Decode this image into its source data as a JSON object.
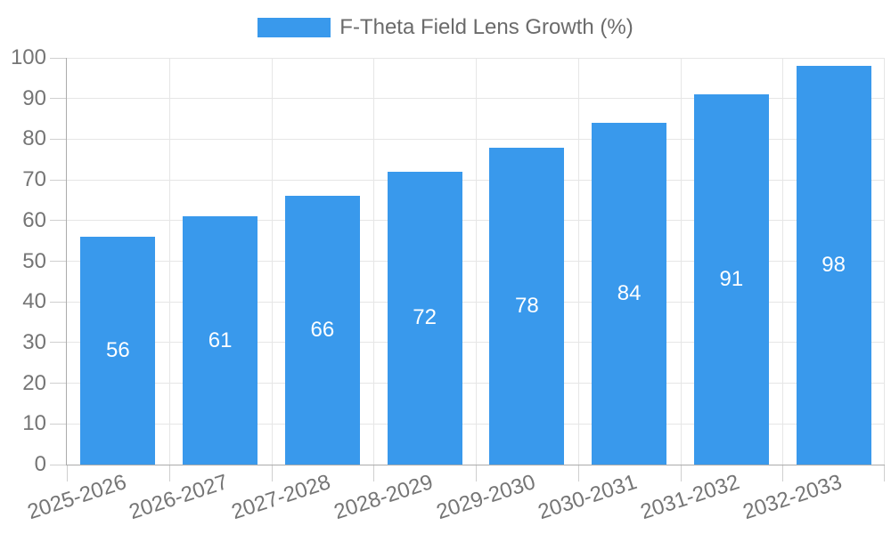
{
  "legend": {
    "label": "F-Theta Field Lens Growth (%)"
  },
  "chart_data": {
    "type": "bar",
    "title": "F-Theta Field Lens Growth (%)",
    "categories": [
      "2025-2026",
      "2026-2027",
      "2027-2028",
      "2028-2029",
      "2029-2030",
      "2030-2031",
      "2031-2032",
      "2032-2033"
    ],
    "values": [
      56,
      61,
      66,
      72,
      78,
      84,
      91,
      98
    ],
    "series": [
      {
        "name": "F-Theta Field Lens Growth (%)",
        "values": [
          56,
          61,
          66,
          72,
          78,
          84,
          91,
          98
        ]
      }
    ],
    "xlabel": "",
    "ylabel": "",
    "ylim": [
      0,
      100
    ],
    "y_tick_step": 10,
    "y_ticks": [
      0,
      10,
      20,
      30,
      40,
      50,
      60,
      70,
      80,
      90,
      100
    ],
    "grid": true,
    "legend_position": "top",
    "bar_value_labels": "inside-center",
    "x_tick_rotation_deg": -18,
    "colors": {
      "bar": "#3999EC",
      "bar_label": "#ffffff",
      "grid": "#e6e6e6",
      "axis": "#ababab",
      "tick_mark": "#cfcfcf",
      "tick_text": "#757575",
      "legend_text": "#6b6b6b",
      "background": "#ffffff"
    }
  }
}
